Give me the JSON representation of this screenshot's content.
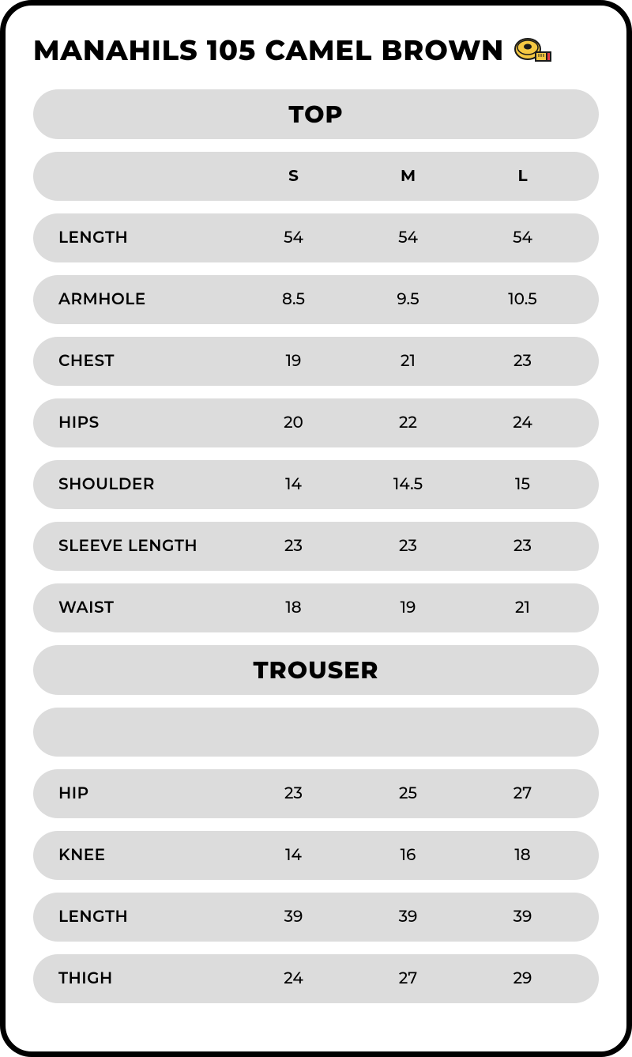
{
  "title": "MANAHILS 105 CAMEL BROWN",
  "sizes": [
    "S",
    "M",
    "L"
  ],
  "sections": [
    {
      "name": "TOP",
      "showSizeHeader": true,
      "rows": [
        {
          "label": "LENGTH",
          "values": [
            "54",
            "54",
            "54"
          ]
        },
        {
          "label": "ARMHOLE",
          "values": [
            "8.5",
            "9.5",
            "10.5"
          ]
        },
        {
          "label": "CHEST",
          "values": [
            "19",
            "21",
            "23"
          ]
        },
        {
          "label": "HIPS",
          "values": [
            "20",
            "22",
            "24"
          ]
        },
        {
          "label": "SHOULDER",
          "values": [
            "14",
            "14.5",
            "15"
          ]
        },
        {
          "label": "SLEEVE LENGTH",
          "values": [
            "23",
            "23",
            "23"
          ]
        },
        {
          "label": "WAIST",
          "values": [
            "18",
            "19",
            "21"
          ]
        }
      ]
    },
    {
      "name": "TROUSER",
      "showSizeHeader": false,
      "rows": [
        {
          "label": "HIP",
          "values": [
            "23",
            "25",
            "27"
          ]
        },
        {
          "label": "KNEE",
          "values": [
            "14",
            "16",
            "18"
          ]
        },
        {
          "label": "LENGTH",
          "values": [
            "39",
            "39",
            "39"
          ]
        },
        {
          "label": "THIGH",
          "values": [
            "24",
            "27",
            "29"
          ]
        }
      ]
    }
  ],
  "styling": {
    "background_color": "#ffffff",
    "card_border_color": "#000000",
    "card_border_width": 7,
    "card_border_radius": 40,
    "row_bg_color": "#dcdcdc",
    "title_fontsize": 35,
    "section_header_fontsize": 30,
    "cell_fontsize": 20,
    "label_fontsize": 20,
    "tape_body_color": "#f5c842",
    "tape_edge_color": "#e63946",
    "tape_outline": "#1a1a1a"
  }
}
